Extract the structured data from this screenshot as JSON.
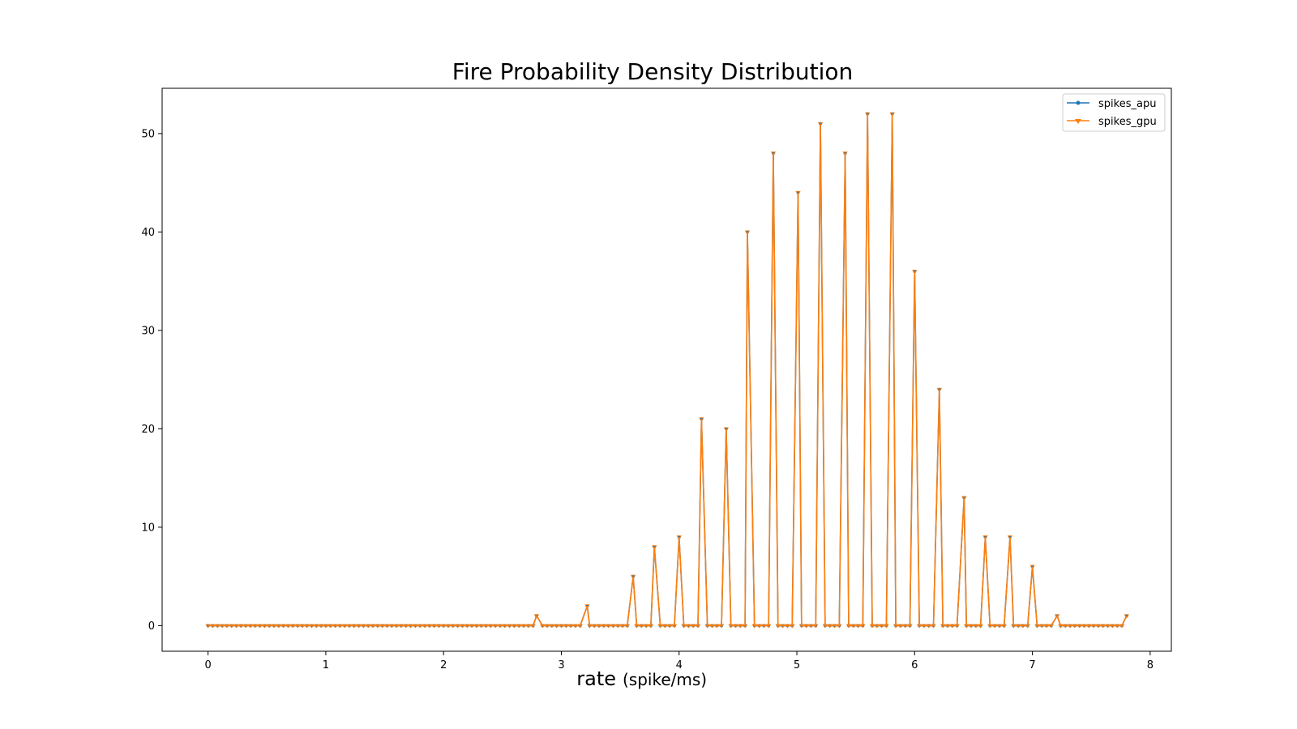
{
  "chart_data": {
    "type": "line",
    "title": "Fire Probability Density Distribution",
    "xlabel": "rate",
    "xlabel_unit": "(spike/ms)",
    "ylabel": "",
    "xlim": [
      -0.39,
      8.18
    ],
    "ylim": [
      -2.6,
      54.6
    ],
    "xticks": [
      0,
      1,
      2,
      3,
      4,
      5,
      6,
      7,
      8
    ],
    "yticks": [
      0,
      10,
      20,
      30,
      40,
      50
    ],
    "grid": false,
    "legend_position": "top-right",
    "x_step": 0.04,
    "x_count": 196,
    "peaks": [
      {
        "x": 2.79,
        "y": 1
      },
      {
        "x": 3.22,
        "y": 2
      },
      {
        "x": 3.61,
        "y": 5
      },
      {
        "x": 3.79,
        "y": 8
      },
      {
        "x": 4.0,
        "y": 9
      },
      {
        "x": 4.19,
        "y": 21
      },
      {
        "x": 4.4,
        "y": 20
      },
      {
        "x": 4.58,
        "y": 40
      },
      {
        "x": 4.8,
        "y": 48
      },
      {
        "x": 5.01,
        "y": 44
      },
      {
        "x": 5.2,
        "y": 51
      },
      {
        "x": 5.41,
        "y": 48
      },
      {
        "x": 5.6,
        "y": 52
      },
      {
        "x": 5.81,
        "y": 52
      },
      {
        "x": 6.0,
        "y": 36
      },
      {
        "x": 6.21,
        "y": 24
      },
      {
        "x": 6.42,
        "y": 13
      },
      {
        "x": 6.6,
        "y": 9
      },
      {
        "x": 6.81,
        "y": 9
      },
      {
        "x": 7.0,
        "y": 6
      },
      {
        "x": 7.21,
        "y": 1
      },
      {
        "x": 7.8,
        "y": 1
      }
    ],
    "series": [
      {
        "name": "spikes_apu",
        "color": "#1f77b4",
        "marker": "point"
      },
      {
        "name": "spikes_gpu",
        "color": "#ff7f0e",
        "marker": "tri_down"
      }
    ]
  }
}
